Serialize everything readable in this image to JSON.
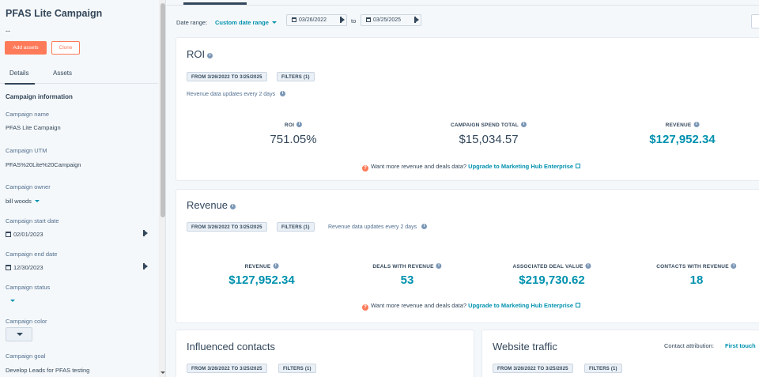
{
  "campaign": {
    "title": "PFAS Lite Campaign",
    "subtitle": "--",
    "add_assets_label": "Add assets",
    "clone_label": "Clone"
  },
  "sidebar": {
    "tabs": [
      {
        "label": "Details"
      },
      {
        "label": "Assets"
      }
    ],
    "section_title": "Campaign information",
    "fields": {
      "name": {
        "label": "Campaign name",
        "value": "PFAS Lite Campaign"
      },
      "utm": {
        "label": "Campaign UTM",
        "value": "PFAS%20Lite%20Campaign"
      },
      "owner": {
        "label": "Campaign owner",
        "value": "bill woods"
      },
      "start_date": {
        "label": "Campaign start date",
        "value": "02/01/2023"
      },
      "end_date": {
        "label": "Campaign end date",
        "value": "12/30/2023"
      },
      "status": {
        "label": "Campaign status",
        "value": ""
      },
      "color": {
        "label": "Campaign color"
      },
      "goal": {
        "label": "Campaign goal",
        "value": "Develop Leads for PFAS testing"
      }
    }
  },
  "date_range": {
    "label": "Date range:",
    "selected": "Custom date range",
    "from": "03/26/2022",
    "to_label": "to",
    "to": "03/25/2025"
  },
  "roi": {
    "title": "ROI",
    "range_tag": "FROM 3/26/2022 TO 3/25/2025",
    "filters_tag": "FILTERS (1)",
    "update_note": "Revenue data updates every 2 days",
    "metrics": [
      {
        "label": "ROI",
        "value": "751.05%"
      },
      {
        "label": "CAMPAIGN SPEND TOTAL",
        "value": "$15,034.57"
      },
      {
        "label": "REVENUE",
        "value": "$127,952.34"
      }
    ],
    "upsell_text": "Want more revenue and deals data?",
    "upsell_link": "Upgrade to Marketing Hub Enterprise"
  },
  "revenue": {
    "title": "Revenue",
    "range_tag": "FROM 3/26/2022 TO 3/25/2025",
    "filters_tag": "FILTERS (1)",
    "update_note": "Revenue data updates every 2 days",
    "metrics": [
      {
        "label": "REVENUE",
        "value": "$127,952.34"
      },
      {
        "label": "DEALS WITH REVENUE",
        "value": "53"
      },
      {
        "label": "ASSOCIATED DEAL VALUE",
        "value": "$219,730.62"
      },
      {
        "label": "CONTACTS WITH REVENUE",
        "value": "18"
      }
    ],
    "upsell_text": "Want more revenue and deals data?",
    "upsell_link": "Upgrade to Marketing Hub Enterprise"
  },
  "influenced_contacts": {
    "title": "Influenced contacts",
    "range_tag": "FROM 3/26/2022 TO 3/25/2025",
    "filters_tag": "FILTERS (1)"
  },
  "website_traffic": {
    "title": "Website traffic",
    "attribution_label": "Contact attribution:",
    "attribution_value": "First touch",
    "range_tag": "FROM 3/26/2022 TO 3/25/2025",
    "filters_tag": "FILTERS (1)"
  },
  "colors": {
    "accent": "#ff7a59",
    "link": "#0091ae",
    "text": "#33475b"
  }
}
